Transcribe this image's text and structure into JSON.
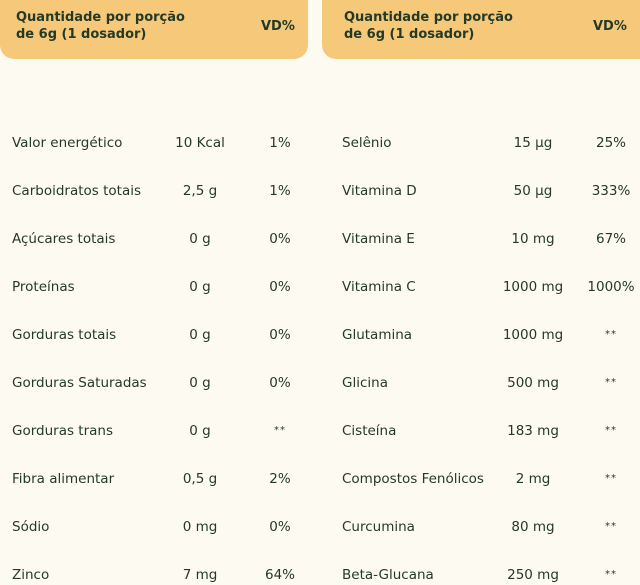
{
  "left_table": {
    "header": {
      "title_line1": "Quantidade por porção",
      "title_line2": "de 6g (1 dosador)",
      "vd": "VD%"
    },
    "rows": [
      {
        "name": "Valor energético",
        "amount": "10 Kcal",
        "vd": "1%"
      },
      {
        "name": "Carboidratos totais",
        "amount": "2,5 g",
        "vd": "1%"
      },
      {
        "name": "Açúcares totais",
        "amount": "0 g",
        "vd": "0%"
      },
      {
        "name": "Proteínas",
        "amount": "0 g",
        "vd": "0%"
      },
      {
        "name": "Gorduras totais",
        "amount": "0 g",
        "vd": "0%"
      },
      {
        "name": "Gorduras Saturadas",
        "amount": "0 g",
        "vd": "0%"
      },
      {
        "name": "Gorduras trans",
        "amount": "0 g",
        "vd": "**"
      },
      {
        "name": "Fibra alimentar",
        "amount": "0,5 g",
        "vd": "2%"
      },
      {
        "name": "Sódio",
        "amount": "0 mg",
        "vd": "0%"
      },
      {
        "name": "Zinco",
        "amount": "7 mg",
        "vd": "64%"
      }
    ]
  },
  "right_table": {
    "header": {
      "title_line1": "Quantidade por porção",
      "title_line2": "de 6g (1 dosador)",
      "vd": "VD%"
    },
    "rows": [
      {
        "name": "Selênio",
        "amount": "15 µg",
        "vd": "25%"
      },
      {
        "name": "Vitamina D",
        "amount": "50 µg",
        "vd": "333%"
      },
      {
        "name": "Vitamina E",
        "amount": "10 mg",
        "vd": "67%"
      },
      {
        "name": "Vitamina C",
        "amount": "1000 mg",
        "vd": "1000%"
      },
      {
        "name": "Glutamina",
        "amount": "1000 mg",
        "vd": "**"
      },
      {
        "name": "Glicina",
        "amount": "500 mg",
        "vd": "**"
      },
      {
        "name": "Cisteína",
        "amount": "183 mg",
        "vd": "**"
      },
      {
        "name": "Compostos Fenólicos",
        "amount": "2 mg",
        "vd": "**"
      },
      {
        "name": "Curcumina",
        "amount": "80 mg",
        "vd": "**"
      },
      {
        "name": "Beta-Glucana",
        "amount": "250 mg",
        "vd": "**"
      }
    ]
  },
  "colors": {
    "header_bg": "#f6c87a",
    "page_bg": "#fdfaf2",
    "text": "#243a27"
  }
}
